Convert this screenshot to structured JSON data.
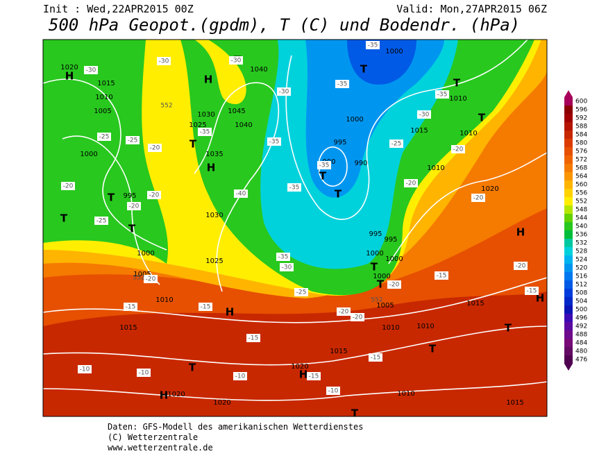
{
  "header": {
    "init": "Init : Wed,22APR2015 00Z",
    "valid": "Valid: Mon,27APR2015 06Z",
    "title": "500 hPa Geopot.(gpdm), T (C) und Bodendr. (hPa)"
  },
  "colorbar": {
    "levels": [
      600,
      596,
      592,
      588,
      584,
      580,
      576,
      572,
      568,
      564,
      560,
      556,
      552,
      548,
      544,
      540,
      536,
      532,
      528,
      524,
      520,
      516,
      512,
      508,
      504,
      500,
      496,
      492,
      488,
      484,
      480,
      476
    ],
    "colors": [
      "#a8005a",
      "#8c0000",
      "#a00000",
      "#b41400",
      "#c82800",
      "#dc3c00",
      "#e65000",
      "#f06400",
      "#f57a00",
      "#fa9600",
      "#ffb400",
      "#ffd200",
      "#ffee00",
      "#b4e600",
      "#64d200",
      "#28c81e",
      "#00be3c",
      "#00c8a0",
      "#00d2dc",
      "#00b4f0",
      "#0096f0",
      "#0078f0",
      "#005ae6",
      "#003cdc",
      "#0028c8",
      "#0a14b4",
      "#3c0ab4",
      "#5a0aa0",
      "#6e0a8c",
      "#780a78",
      "#640a64",
      "#500050"
    ]
  },
  "map": {
    "centers": [
      "H",
      "H",
      "T",
      "T",
      "T",
      "T",
      "T",
      "H",
      "T",
      "T",
      "T",
      "T",
      "T",
      "H",
      "H",
      "H",
      "T",
      "H",
      "H",
      "T",
      "T",
      "T",
      "T",
      "T"
    ],
    "pressure_labels": [
      "1020",
      "1015",
      "1010",
      "1005",
      "1000",
      "995",
      "1000",
      "1005",
      "1010",
      "1015",
      "1020",
      "1020",
      "1020",
      "1015",
      "1010",
      "1010",
      "1005",
      "1000",
      "1000",
      "1000",
      "995",
      "995",
      "990",
      "990",
      "995",
      "1000",
      "1010",
      "1015",
      "1010",
      "1010",
      "1020",
      "1025",
      "1030",
      "1035",
      "1030",
      "1025",
      "1045",
      "1040",
      "1040",
      "1000",
      "1010",
      "1015",
      "1015"
    ],
    "temperature_labels": [
      "-30",
      "-25",
      "-20",
      "-25",
      "-20",
      "-20",
      "-25",
      "-30",
      "-35",
      "-30",
      "-30",
      "-35",
      "-40",
      "-35",
      "-35",
      "-35",
      "-35",
      "-35",
      "-30",
      "-25",
      "-20",
      "-20",
      "-20",
      "-20",
      "-15",
      "-15",
      "-20",
      "-25",
      "-30",
      "-35",
      "-20",
      "-20",
      "-15",
      "-15",
      "-15",
      "-15",
      "-10",
      "-10",
      "-10",
      "-10",
      "-15",
      "-20",
      "-20"
    ],
    "geopotential_labels": [
      "552",
      "552",
      "552"
    ]
  },
  "footer": {
    "source": "Daten: GFS-Modell des amerikanischen Wetterdienstes",
    "copyright": "(C) Wetterzentrale",
    "url": "www.wetterzentrale.de"
  }
}
